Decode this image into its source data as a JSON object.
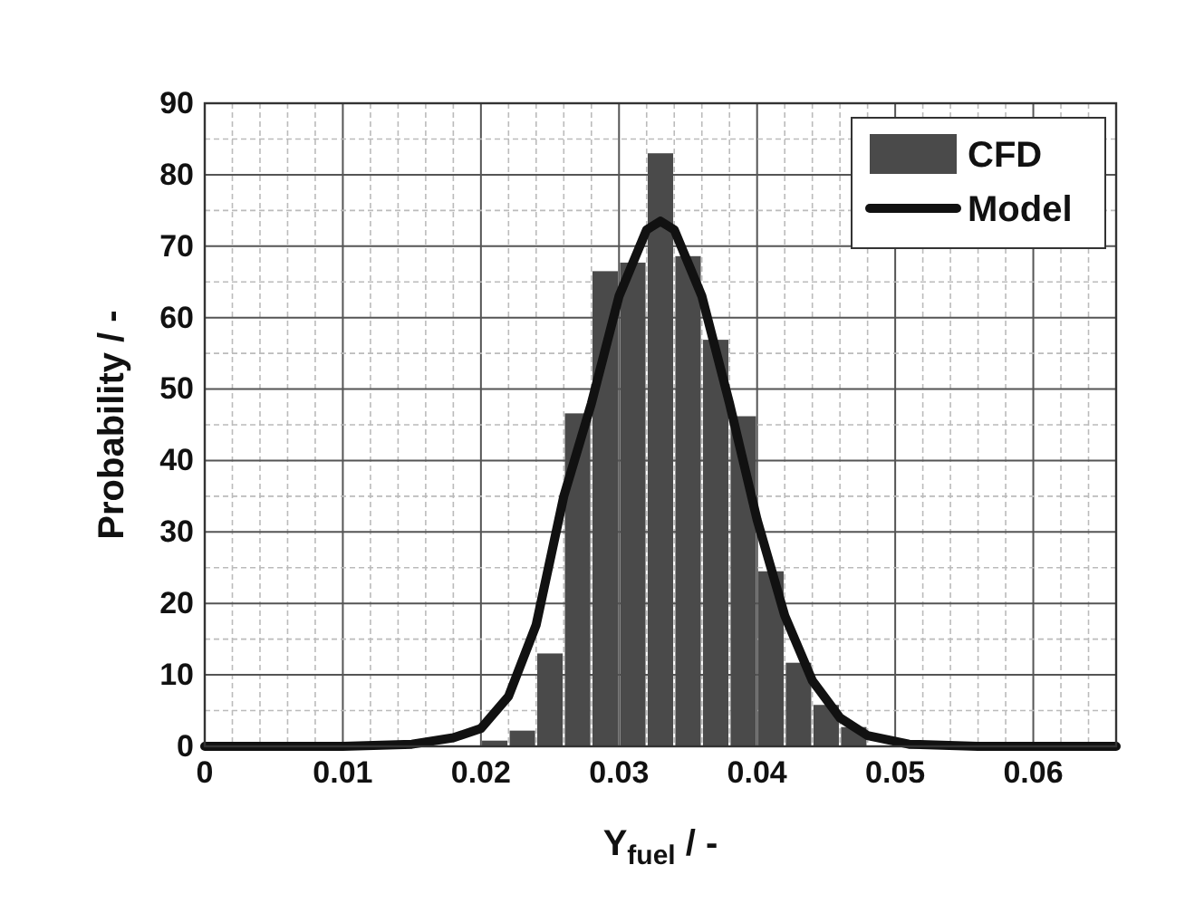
{
  "chart_data": {
    "type": "histogram",
    "xlabel": "Y$_{fuel}$ / -",
    "ylabel": "Probability / -",
    "bins": [
      0.02,
      0.022,
      0.024,
      0.026,
      0.028,
      0.03,
      0.032,
      0.034,
      0.036,
      0.038,
      0.04,
      0.042,
      0.044,
      0.046,
      0.048
    ],
    "series": [
      {
        "name": "CFD",
        "color": "#4a4a4a",
        "values": [
          0.8,
          2.2,
          13,
          46.6,
          66.5,
          67.7,
          83,
          68.6,
          56.9,
          46.2,
          24.5,
          11.7,
          5.8,
          2.7
        ]
      },
      {
        "name": "Model",
        "type": "line",
        "color": "#111111",
        "x": [
          0,
          0.01,
          0.015,
          0.018,
          0.02,
          0.022,
          0.024,
          0.026,
          0.028,
          0.03,
          0.032,
          0.033,
          0.034,
          0.036,
          0.038,
          0.04,
          0.042,
          0.044,
          0.046,
          0.048,
          0.051,
          0.056,
          0.066
        ],
        "values": [
          0,
          0,
          0.3,
          1.2,
          2.5,
          7,
          17,
          35,
          48,
          63,
          72.3,
          73.5,
          72.3,
          63,
          48,
          31.7,
          18.3,
          9.2,
          4,
          1.5,
          0.3,
          0,
          0
        ]
      }
    ],
    "xlim": [
      0,
      0.066
    ],
    "xticks": [
      0,
      0.01,
      0.02,
      0.03,
      0.04,
      0.05,
      0.06
    ],
    "ylim": [
      0,
      90
    ],
    "yticks": [
      0,
      10,
      20,
      30,
      40,
      50,
      60,
      70,
      80,
      90
    ],
    "grid": true,
    "legend": "top right",
    "line_style": "solid",
    "marker": "none"
  }
}
